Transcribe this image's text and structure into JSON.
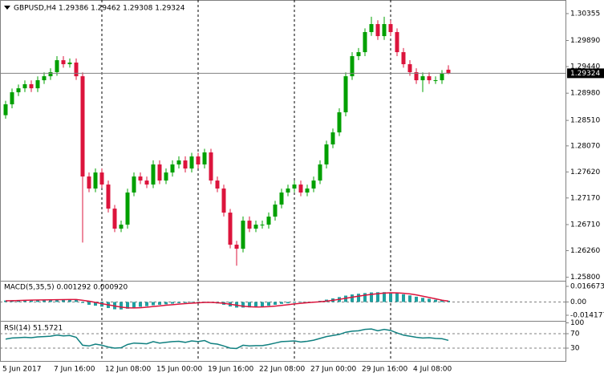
{
  "chart_data": [
    {
      "type": "candlestick",
      "title": "GBPUSD,H4  1.29386 1.29462 1.29308 1.29324",
      "categories": [
        "5 Jun 2017",
        null,
        null,
        null,
        null,
        null,
        null,
        null,
        "7 Jun 16:00",
        null,
        null,
        null,
        null,
        null,
        null,
        null,
        "12 Jun 08:00",
        null,
        null,
        null,
        null,
        null,
        null,
        null,
        "15 Jun 00:00",
        null,
        null,
        null,
        null,
        null,
        null,
        null,
        "19 Jun 16:00",
        null,
        null,
        null,
        null,
        null,
        null,
        null,
        "22 Jun 08:00",
        null,
        null,
        null,
        null,
        null,
        null,
        null,
        "27 Jun 00:00",
        null,
        null,
        null,
        null,
        null,
        null,
        null,
        "29 Jun 16:00",
        null,
        null,
        null,
        null,
        null,
        null,
        null,
        "4 Jul 08:00",
        null,
        null,
        null,
        null,
        null
      ],
      "open": [
        1.286,
        1.28788,
        1.28996,
        1.29065,
        1.29135,
        1.29065,
        1.29204,
        1.29273,
        1.29343,
        1.2955,
        1.29481,
        1.29509,
        1.29273,
        1.27541,
        1.27333,
        1.2761,
        1.27402,
        1.26986,
        1.2664,
        1.26709,
        1.27264,
        1.27541,
        1.27471,
        1.27402,
        1.27749,
        1.27471,
        1.2761,
        1.27749,
        1.27818,
        1.27679,
        1.27887,
        1.27749,
        1.27957,
        1.27471,
        1.27333,
        1.26917,
        1.26363,
        1.26293,
        1.26778,
        1.2664,
        1.26709,
        1.26709,
        1.26848,
        1.27056,
        1.27264,
        1.27333,
        1.27402,
        1.27264,
        1.27333,
        1.27471,
        1.27749,
        1.28095,
        1.28303,
        1.2865,
        1.29273,
        1.2962,
        1.29689,
        1.30036,
        1.30174,
        1.29966,
        1.30174,
        1.30036,
        1.29689,
        1.29481,
        1.29343,
        1.29204,
        1.29273,
        1.29204,
        1.29204,
        1.29386
      ],
      "high": [
        1.2885,
        1.2906,
        1.2913,
        1.292,
        1.292,
        1.2927,
        1.2934,
        1.2941,
        1.2962,
        1.2962,
        1.2958,
        1.2958,
        1.2934,
        1.2761,
        1.2768,
        1.2768,
        1.2747,
        1.2705,
        1.2678,
        1.2733,
        1.2761,
        1.2761,
        1.2754,
        1.2782,
        1.2782,
        1.2768,
        1.2782,
        1.2789,
        1.2789,
        1.2795,
        1.2795,
        1.2802,
        1.2802,
        1.2754,
        1.274,
        1.2698,
        1.2643,
        1.2685,
        1.2685,
        1.2678,
        1.2678,
        1.2692,
        1.2712,
        1.2733,
        1.274,
        1.2747,
        1.2747,
        1.274,
        1.2754,
        1.2782,
        1.2816,
        1.2837,
        1.2872,
        1.2934,
        1.2969,
        1.2976,
        1.301,
        1.303,
        1.3024,
        1.303,
        1.3024,
        1.301,
        1.2976,
        1.2955,
        1.2941,
        1.2934,
        1.2934,
        1.2927,
        1.2938,
        1.29462
      ],
      "low": [
        1.2854,
        1.2872,
        1.2893,
        1.29,
        1.29,
        1.29,
        1.2914,
        1.2921,
        1.2928,
        1.2942,
        1.2942,
        1.2921,
        1.264,
        1.2727,
        1.2727,
        1.2734,
        1.2692,
        1.2658,
        1.2658,
        1.2664,
        1.272,
        1.2741,
        1.2734,
        1.2734,
        1.2741,
        1.2741,
        1.2754,
        1.2768,
        1.2761,
        1.2761,
        1.2768,
        1.2768,
        1.2741,
        1.2727,
        1.2685,
        1.263,
        1.26,
        1.2623,
        1.2658,
        1.2658,
        1.2664,
        1.2664,
        1.2678,
        1.2699,
        1.272,
        1.2727,
        1.272,
        1.272,
        1.2727,
        1.2741,
        1.2768,
        1.2803,
        1.2824,
        1.2858,
        1.2921,
        1.2955,
        1.2962,
        1.2997,
        1.299,
        1.299,
        1.2997,
        1.2962,
        1.2942,
        1.2928,
        1.2914,
        1.29,
        1.2914,
        1.2914,
        1.2914,
        1.29308
      ],
      "close": [
        1.28788,
        1.28996,
        1.29065,
        1.29135,
        1.29065,
        1.29204,
        1.29273,
        1.29343,
        1.2955,
        1.29481,
        1.29509,
        1.29273,
        1.27541,
        1.27333,
        1.2761,
        1.27402,
        1.26986,
        1.2664,
        1.26709,
        1.27264,
        1.27541,
        1.27471,
        1.27402,
        1.27749,
        1.27471,
        1.2761,
        1.27749,
        1.27818,
        1.27679,
        1.27887,
        1.27749,
        1.27957,
        1.27471,
        1.27333,
        1.26917,
        1.26363,
        1.26293,
        1.26778,
        1.2664,
        1.26709,
        1.26709,
        1.26848,
        1.27056,
        1.27264,
        1.27333,
        1.27402,
        1.27264,
        1.27333,
        1.27471,
        1.27749,
        1.28095,
        1.28303,
        1.2865,
        1.29273,
        1.2962,
        1.29689,
        1.30036,
        1.30174,
        1.29966,
        1.30174,
        1.30036,
        1.29689,
        1.29481,
        1.29343,
        1.29204,
        1.29273,
        1.29204,
        1.29204,
        1.29315,
        1.29324
      ],
      "up_color": "#00a000",
      "down_color": "#dc143c",
      "ylim": [
        1.2574,
        1.3059
      ],
      "yticks": [
        1.30355,
        {
          "value": 1.2989,
          "label": "1.29890"
        },
        {
          "value": 1.2944,
          "label": "1.29440"
        },
        {
          "value": 1.2898,
          "label": "1.28980"
        },
        {
          "value": 1.2851,
          "label": "1.28510"
        },
        {
          "value": 1.2807,
          "label": "1.28070"
        },
        {
          "value": 1.2762,
          "label": "1.27620"
        },
        {
          "value": 1.2717,
          "label": "1.27170"
        },
        {
          "value": 1.2671,
          "label": "1.26710"
        },
        {
          "value": 1.2626,
          "label": "1.26260"
        },
        {
          "value": 1.258,
          "label": "1.25800"
        }
      ]
    },
    {
      "type": "macd",
      "title": "MACD(5,35,5) 0.001292 0.000920",
      "values": [
        0.0015,
        0.0018,
        0.002,
        0.0022,
        0.0022,
        0.0023,
        0.0024,
        0.0026,
        0.0028,
        0.0028,
        0.0027,
        0.0024,
        -0.001,
        -0.003,
        -0.004,
        -0.005,
        -0.0065,
        -0.0078,
        -0.008,
        -0.0072,
        -0.006,
        -0.0052,
        -0.0045,
        -0.0035,
        -0.003,
        -0.0025,
        -0.0018,
        -0.0012,
        -0.001,
        -0.0005,
        -0.0003,
        0.0002,
        -0.0008,
        -0.0016,
        -0.003,
        -0.0048,
        -0.006,
        -0.006,
        -0.0058,
        -0.0054,
        -0.0048,
        -0.004,
        -0.003,
        -0.002,
        -0.0014,
        -0.0008,
        -0.0005,
        -0.0002,
        0.0003,
        0.0012,
        0.0025,
        0.0038,
        0.0052,
        0.0068,
        0.008,
        0.0088,
        0.0095,
        0.0102,
        0.0104,
        0.0105,
        0.0102,
        0.0094,
        0.0082,
        0.007,
        0.0056,
        0.0044,
        0.0034,
        0.0024,
        0.0018,
        0.001292
      ],
      "signal": [
        0.0012,
        0.0014,
        0.0016,
        0.0018,
        0.002,
        0.0021,
        0.0022,
        0.0023,
        0.0024,
        0.0025,
        0.0026,
        0.0026,
        0.0018,
        0.0008,
        -0.0005,
        -0.0018,
        -0.003,
        -0.0043,
        -0.0055,
        -0.0062,
        -0.0064,
        -0.0061,
        -0.0056,
        -0.0049,
        -0.0042,
        -0.0035,
        -0.0029,
        -0.0023,
        -0.0018,
        -0.0013,
        -0.0009,
        -0.0005,
        -0.0005,
        -0.0008,
        -0.0014,
        -0.0024,
        -0.0035,
        -0.0045,
        -0.0051,
        -0.0054,
        -0.0053,
        -0.005,
        -0.0044,
        -0.0037,
        -0.0029,
        -0.0021,
        -0.0014,
        -0.0008,
        -0.0003,
        0.0002,
        0.0009,
        0.0018,
        0.0028,
        0.0039,
        0.0051,
        0.0062,
        0.0072,
        0.0081,
        0.0089,
        0.0095,
        0.0098,
        0.0097,
        0.0093,
        0.0086,
        0.0076,
        0.0062,
        0.0048,
        0.0034,
        0.0019,
        0.00092
      ],
      "color": "#20a0a0",
      "signal_color": "#dc143c",
      "ylim": [
        -0.014177,
        0.016673
      ],
      "yticks": [
        0.016673,
        {
          "value": 0,
          "label": "0.00"
        },
        -0.014177
      ]
    },
    {
      "type": "line",
      "title": "RSI(14) 51.5721",
      "values": [
        55,
        58,
        59,
        60,
        59,
        61,
        62,
        63,
        66,
        64,
        65,
        60,
        38,
        36,
        41,
        38,
        33,
        30,
        31,
        40,
        44,
        43,
        42,
        48,
        44,
        46,
        48,
        49,
        46,
        50,
        48,
        51,
        43,
        41,
        36,
        30,
        29,
        38,
        36,
        37,
        37,
        40,
        44,
        48,
        49,
        50,
        47,
        49,
        52,
        57,
        62,
        65,
        68,
        74,
        77,
        78,
        82,
        83,
        78,
        82,
        79,
        72,
        66,
        63,
        60,
        58,
        59,
        57,
        56,
        51.5721
      ],
      "color": "#108080",
      "ylim": [
        0,
        100
      ],
      "yticks": [
        100,
        70,
        30
      ]
    }
  ]
}
